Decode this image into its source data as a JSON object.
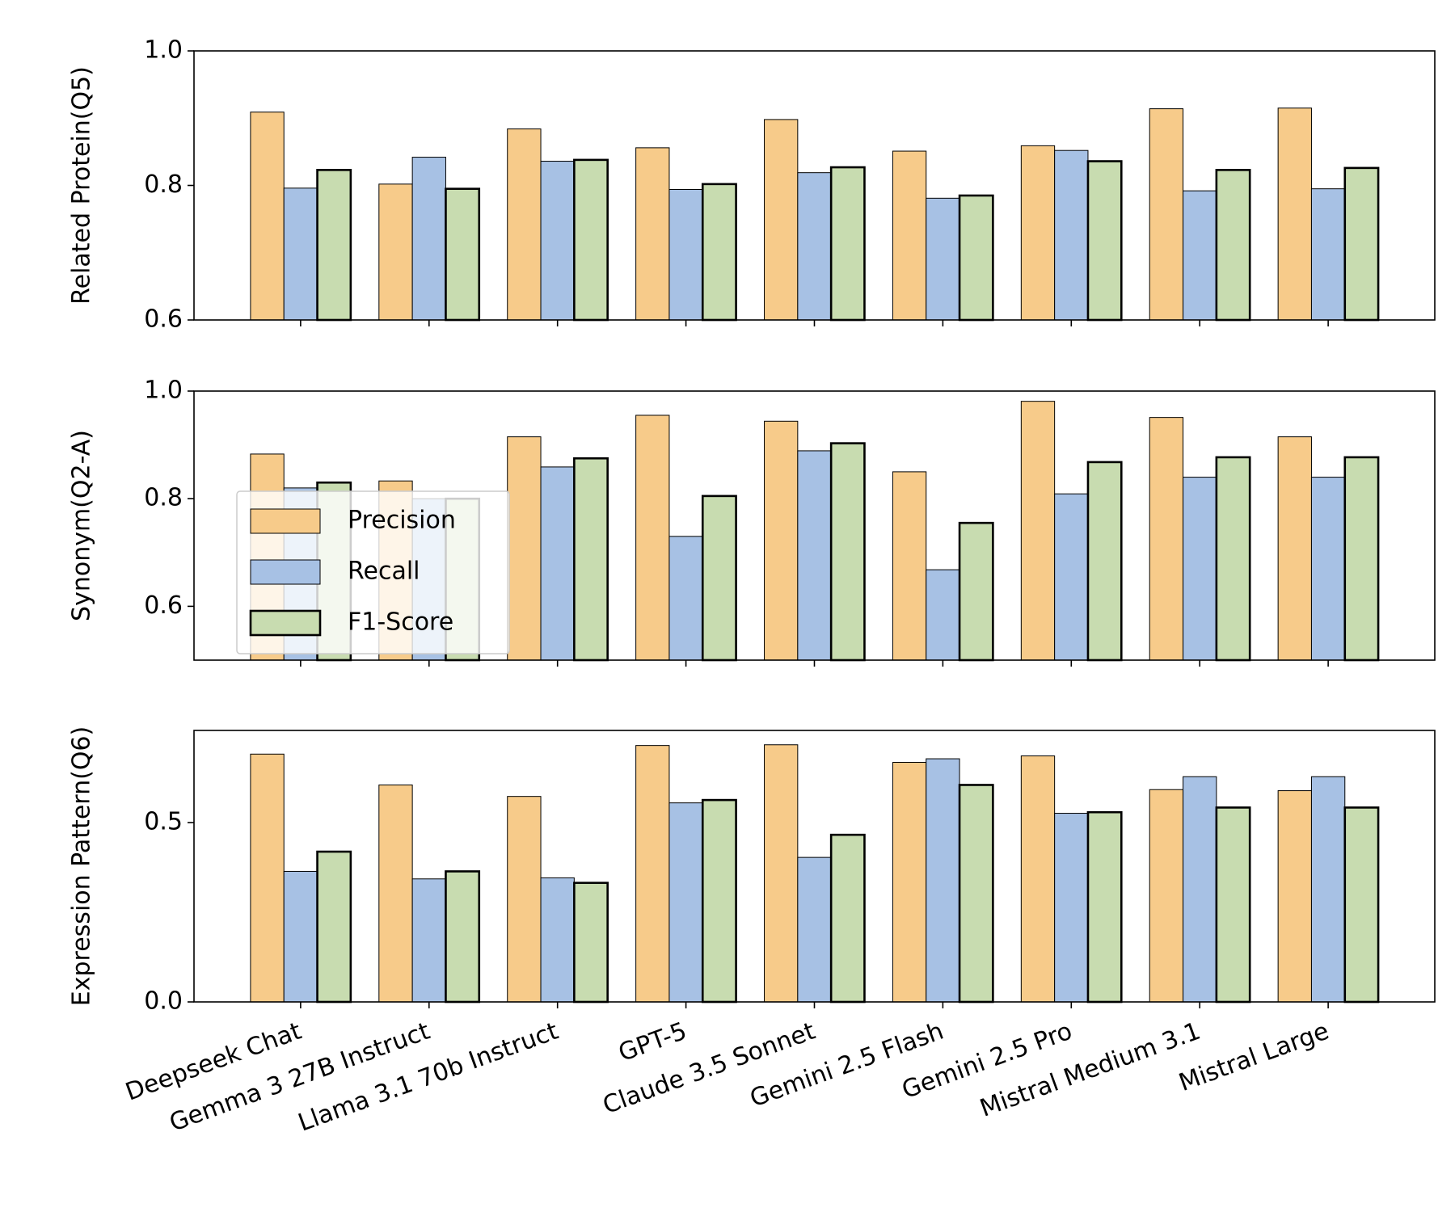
{
  "chart_data": [
    {
      "type": "bar",
      "ylabel": "Related Protein(Q5)",
      "ylim": [
        0.6,
        1.0
      ],
      "yticks": [
        0.6,
        0.8,
        {
          "value": 1.0,
          "label": "1.0"
        }
      ],
      "series": [
        {
          "name": "Precision",
          "color": "#f7cb8a",
          "values": [
            0.909,
            0.802,
            0.884,
            0.856,
            0.898,
            0.851,
            0.859,
            0.914,
            0.915
          ]
        },
        {
          "name": "Recall",
          "color": "#a7c1e4",
          "values": [
            0.796,
            0.842,
            0.836,
            0.794,
            0.819,
            0.781,
            0.852,
            0.792,
            0.795
          ]
        },
        {
          "name": "F1-Score",
          "color": "#c8dcb0",
          "values": [
            0.823,
            0.795,
            0.838,
            0.802,
            0.827,
            0.785,
            0.836,
            0.823,
            0.826
          ]
        }
      ]
    },
    {
      "type": "bar",
      "ylabel": "Synonym(Q2-A)",
      "ylim": [
        0.5,
        1.0
      ],
      "legend": "lower left",
      "yticks": [
        0.6,
        0.8,
        {
          "value": 1.0,
          "label": "1.0"
        }
      ],
      "series": [
        {
          "color": "#f7cb8a",
          "values": [
            0.883,
            0.833,
            0.915,
            0.955,
            0.944,
            0.85,
            0.981,
            0.951,
            0.915
          ]
        },
        {
          "color": "#a7c1e4",
          "values": [
            0.82,
            0.8,
            0.859,
            0.73,
            0.889,
            0.668,
            0.809,
            0.84,
            0.84
          ]
        },
        {
          "color": "#c8dcb0",
          "values": [
            0.83,
            0.8,
            0.875,
            0.805,
            0.903,
            0.755,
            0.868,
            0.877,
            0.877
          ]
        }
      ]
    },
    {
      "type": "bar",
      "ylabel": "Expression Pattern(Q6)",
      "ylim": [
        0,
        0.757
      ],
      "yticks": [
        {
          "value": 0,
          "label": "0.0"
        },
        0.5
      ],
      "categories": [
        "Deepseek Chat",
        "Gemma 3 27B Instruct",
        "Llama 3.1 70b Instruct",
        "GPT-5",
        "Claude 3.5 Sonnet",
        "Gemini 2.5 Flash",
        "Gemini 2.5 Pro",
        "Mistral Medium 3.1",
        "Mistral Large"
      ],
      "series": [
        {
          "color": "#f7cb8a",
          "values": [
            0.691,
            0.605,
            0.573,
            0.715,
            0.717,
            0.668,
            0.686,
            0.592,
            0.589
          ]
        },
        {
          "color": "#a7c1e4",
          "values": [
            0.364,
            0.343,
            0.346,
            0.555,
            0.403,
            0.678,
            0.526,
            0.628,
            0.628
          ]
        },
        {
          "color": "#c8dcb0",
          "values": [
            0.419,
            0.364,
            0.332,
            0.563,
            0.466,
            0.605,
            0.529,
            0.542,
            0.542
          ]
        }
      ]
    }
  ]
}
